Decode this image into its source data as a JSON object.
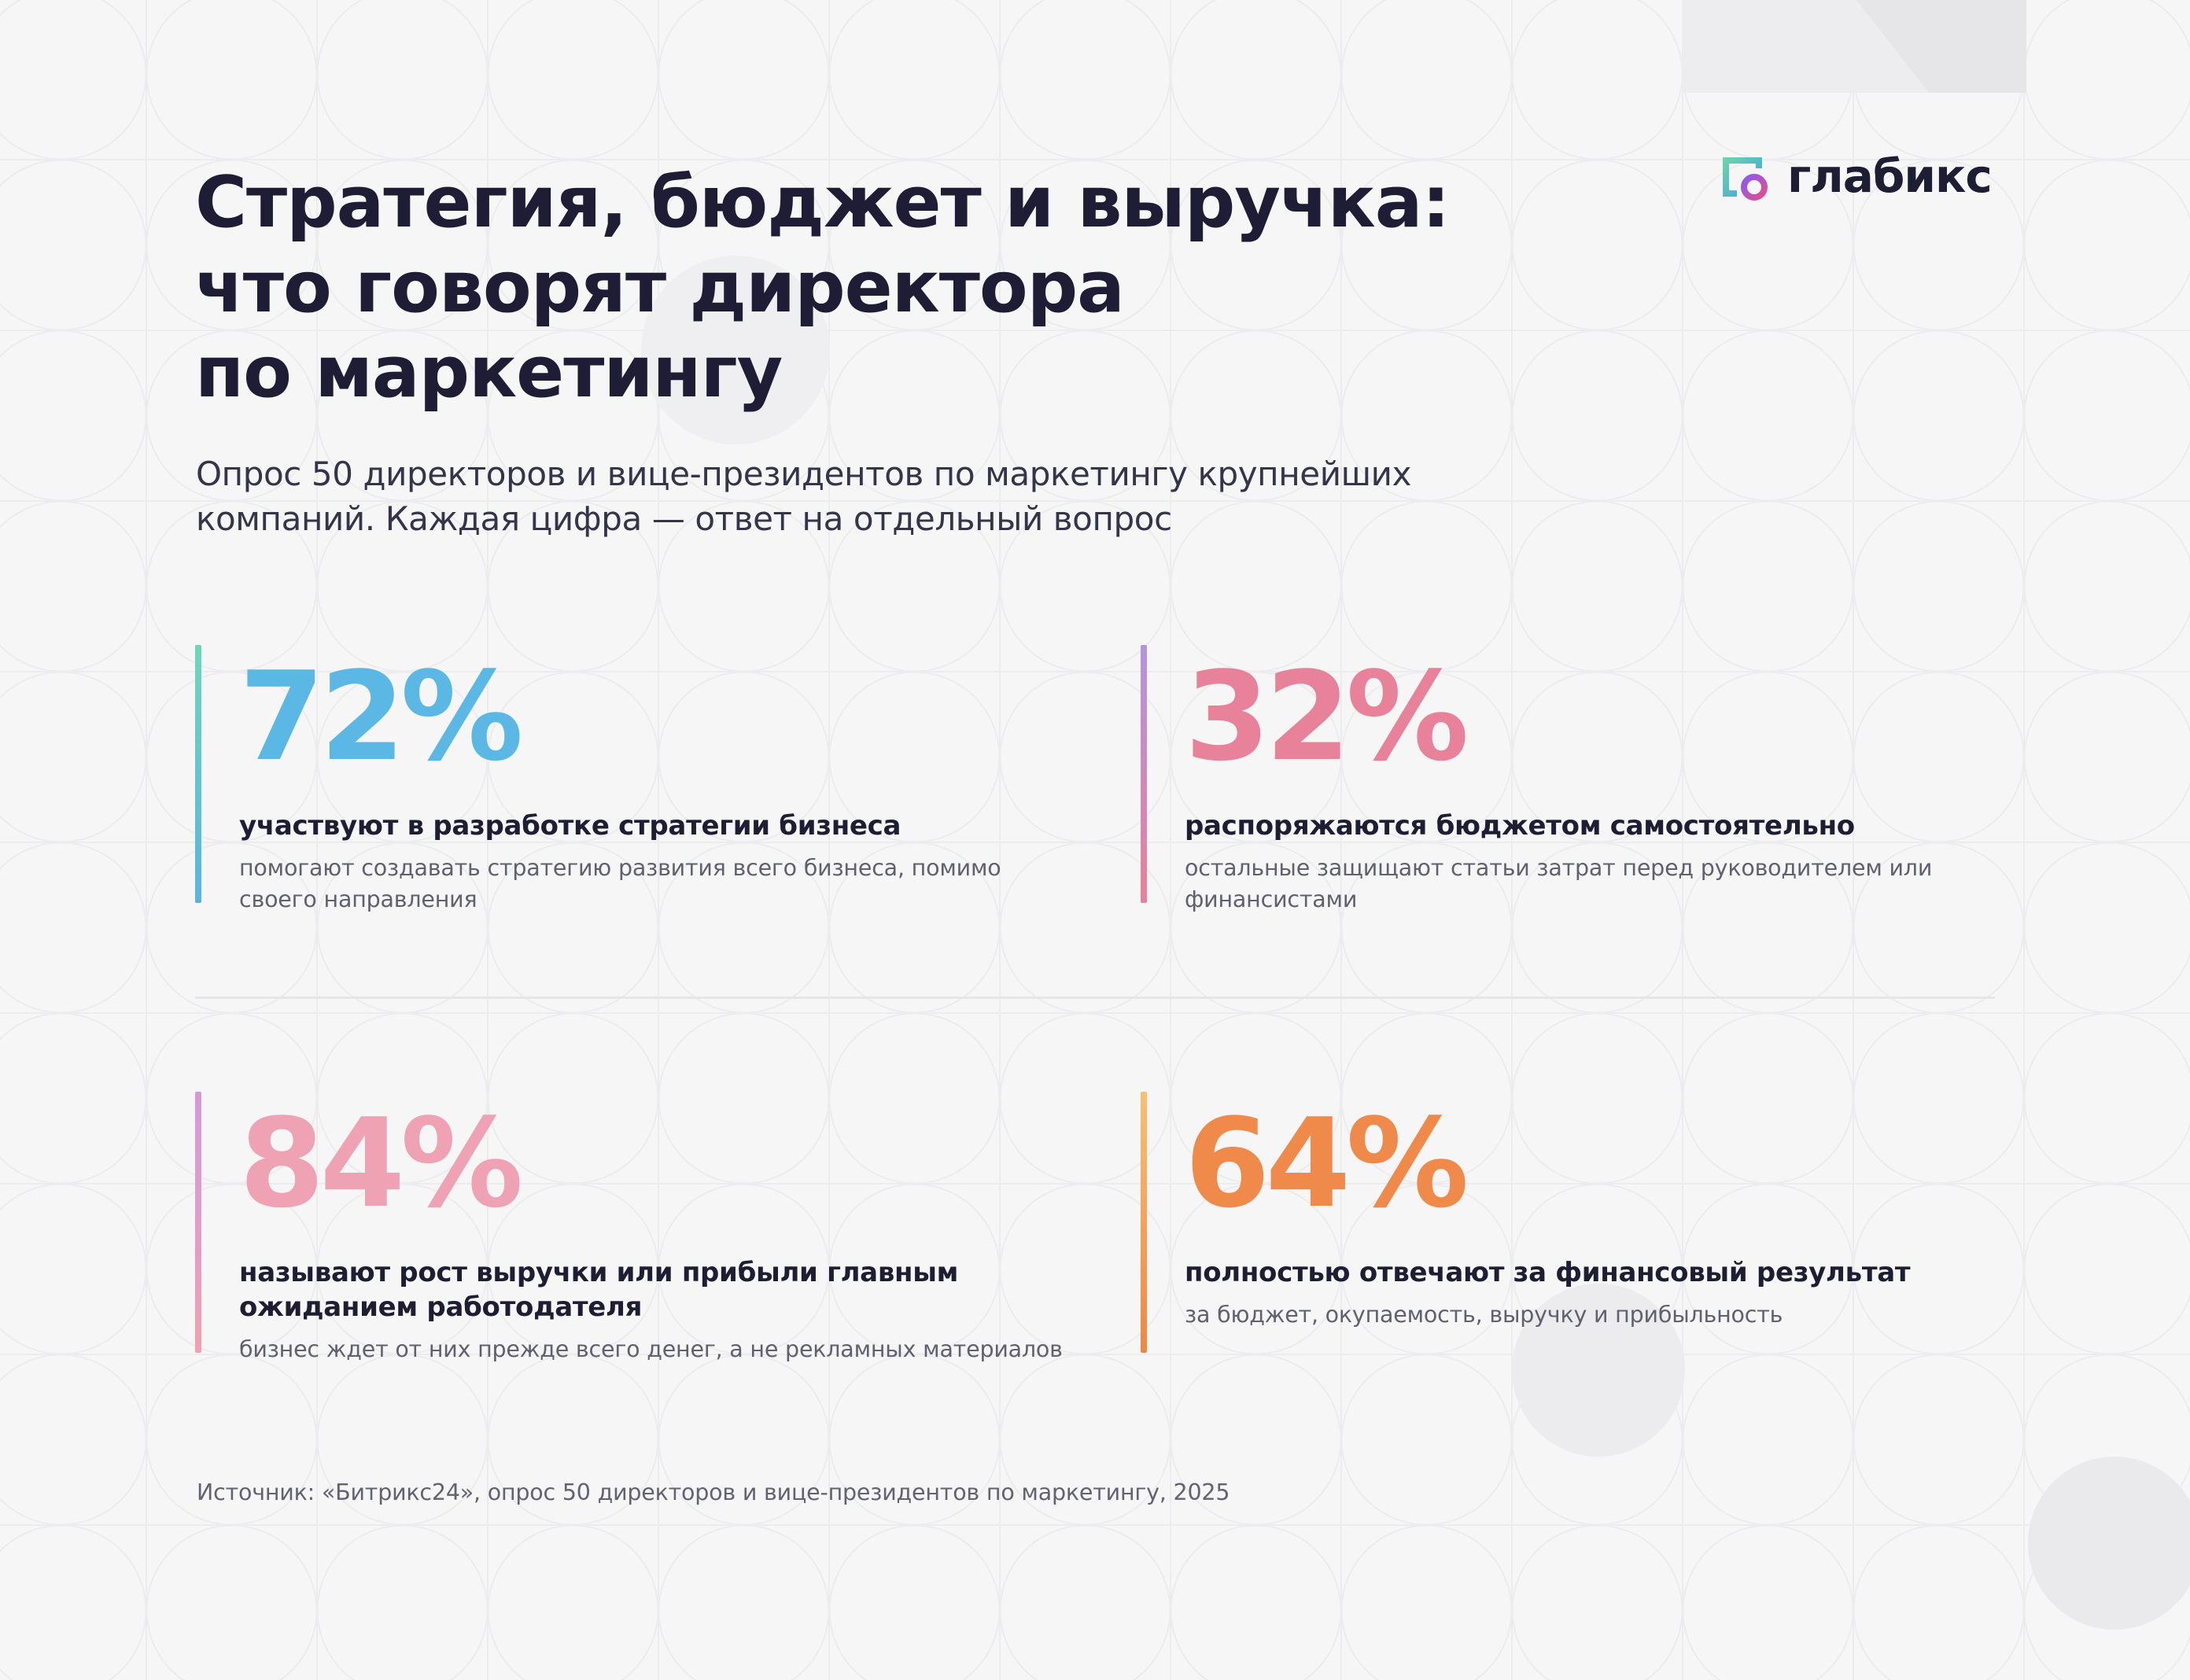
{
  "brand": {
    "name": "глабикс",
    "icon": "glabix-logo-icon"
  },
  "title_lines": [
    "Стратегия, бюджет и выручка:",
    "что говорят директора",
    "по маркетингу"
  ],
  "subtitle_lines": [
    "Опрос 50 директоров и вице-президентов по маркетингу крупнейших",
    "компаний. Каждая цифра — ответ на отдельный вопрос"
  ],
  "stats": [
    {
      "value": "72%",
      "label_lines": [
        "участвуют в разработке стратегии бизнеса"
      ],
      "desc_lines": [
        "помогают создавать стратегию развития всего бизнеса, помимо",
        "своего направления"
      ],
      "color": "#5bb8e4",
      "bar_gradient": [
        "#6fd6b8",
        "#5ab4e0"
      ]
    },
    {
      "value": "32%",
      "label_lines": [
        "распоряжаются бюджетом самостоятельно"
      ],
      "desc_lines": [
        "остальные защищают статьи затрат перед руководителем или",
        "финансистами"
      ],
      "color": "#e8819a",
      "bar_gradient": [
        "#b394dc",
        "#e8819a"
      ]
    },
    {
      "value": "84%",
      "label_lines": [
        "называют рост выручки или прибыли главным",
        "ожиданием работодателя"
      ],
      "desc_lines": [
        "бизнес ждет от них прежде всего денег, а не рекламных материалов"
      ],
      "color": "#eea2b4",
      "bar_gradient": [
        "#d49ad8",
        "#f0a1b2"
      ]
    },
    {
      "value": "64%",
      "label_lines": [
        "полностью отвечают за финансовый результат"
      ],
      "desc_lines": [
        "за бюджет, окупаемость, выручку и прибыльность"
      ],
      "color": "#f08a4a",
      "bar_gradient": [
        "#f6c070",
        "#ef8743"
      ]
    }
  ],
  "source": "Источник: «Битрикс24», опрос 50 директоров и вице-президентов по маркетингу, 2025"
}
